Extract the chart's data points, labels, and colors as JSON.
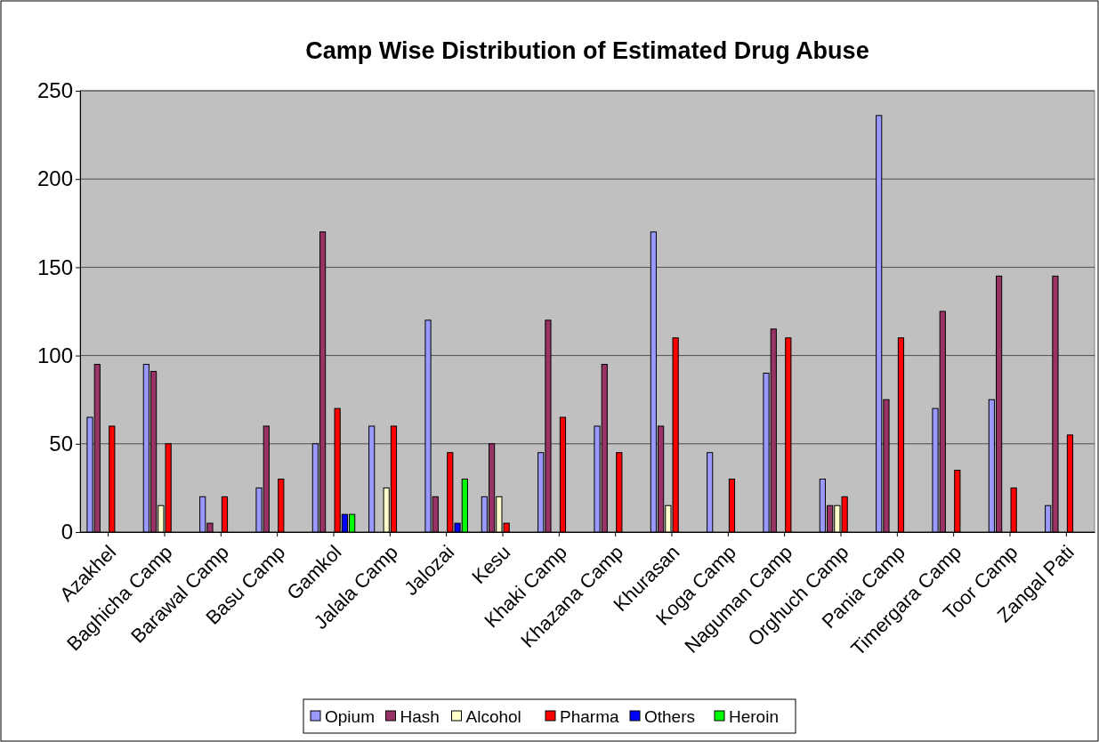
{
  "chart_data": {
    "type": "bar",
    "title": "Camp Wise Distribution of Estimated Drug Abuse",
    "categories": [
      "Azakhel",
      "Baghicha Camp",
      "Barawal Camp",
      "Basu Camp",
      "Gamkol",
      "Jalala Camp",
      "Jalozai",
      "Kesu",
      "Khaki Camp",
      "Khazana Camp",
      "Khurasan",
      "Koga Camp",
      "Naguman Camp",
      "Orghuch Camp",
      "Pania Camp",
      "Timergara Camp",
      "Toor Camp",
      "Zangal Pati"
    ],
    "series": [
      {
        "name": "Opium",
        "color": "#9999ff",
        "values": [
          65,
          95,
          20,
          25,
          50,
          60,
          120,
          20,
          45,
          60,
          170,
          45,
          90,
          30,
          236,
          70,
          75,
          15
        ]
      },
      {
        "name": "Hash",
        "color": "#993366",
        "values": [
          95,
          91,
          5,
          60,
          170,
          null,
          20,
          50,
          120,
          95,
          60,
          null,
          115,
          15,
          75,
          125,
          145,
          145
        ]
      },
      {
        "name": "Alcohol",
        "color": "#ffffcc",
        "values": [
          null,
          15,
          null,
          null,
          null,
          25,
          null,
          20,
          null,
          null,
          15,
          null,
          null,
          15,
          null,
          null,
          null,
          null
        ]
      },
      {
        "name": "Pharma",
        "color": "#ff0000",
        "values": [
          60,
          50,
          20,
          30,
          70,
          60,
          45,
          5,
          65,
          45,
          110,
          30,
          110,
          20,
          110,
          35,
          25,
          55
        ]
      },
      {
        "name": "Others",
        "color": "#0000ff",
        "values": [
          null,
          null,
          null,
          null,
          10,
          null,
          5,
          null,
          null,
          null,
          null,
          null,
          null,
          null,
          null,
          null,
          null,
          null
        ]
      },
      {
        "name": "Heroin",
        "color": "#00ff00",
        "values": [
          null,
          null,
          null,
          null,
          10,
          null,
          30,
          null,
          null,
          null,
          null,
          null,
          null,
          null,
          null,
          null,
          null,
          null
        ]
      }
    ],
    "ylim": [
      0,
      250
    ],
    "yticks": [
      0,
      50,
      100,
      150,
      200,
      250
    ],
    "grid": "y",
    "legend": "bottom"
  }
}
